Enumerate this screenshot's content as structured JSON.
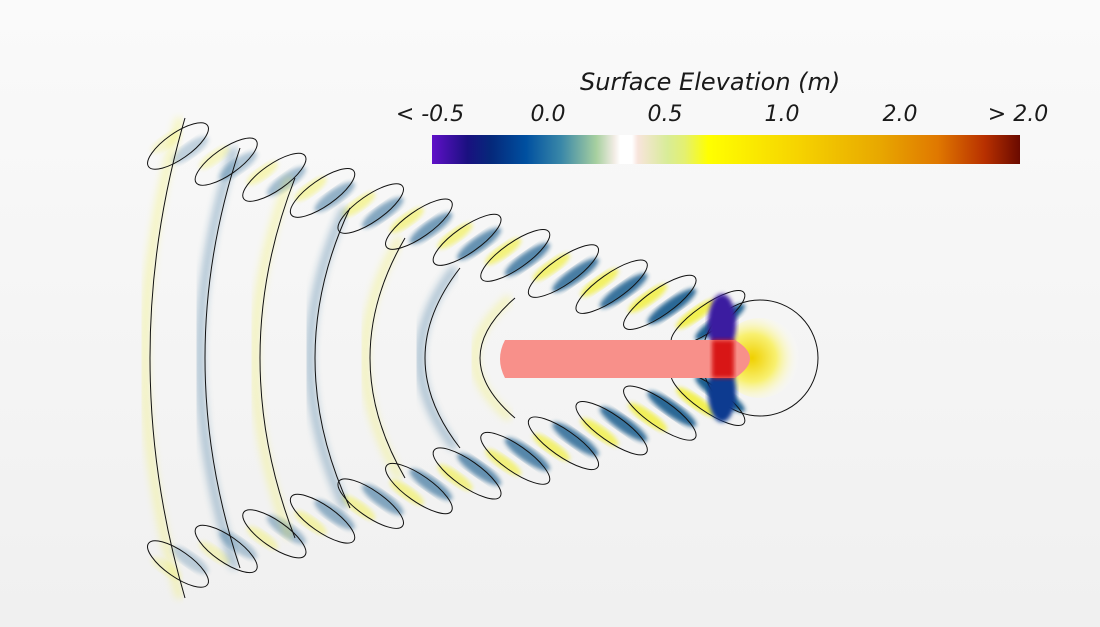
{
  "colorbar": {
    "title": "Surface Elevation (m)",
    "ticks": [
      "< -0.5",
      "0.0",
      "0.5",
      "1.0",
      "2.0",
      "> 2.0"
    ],
    "colors": {
      "min": "#6010c8",
      "negative": "#0050a0",
      "zero": "#ffffff",
      "positive": "#ffff00",
      "max": "#6a0a00"
    }
  },
  "scene": {
    "hull_color": "#f8908a",
    "crest_color": "#f2f050",
    "trough_color": "#1f5f8f"
  }
}
